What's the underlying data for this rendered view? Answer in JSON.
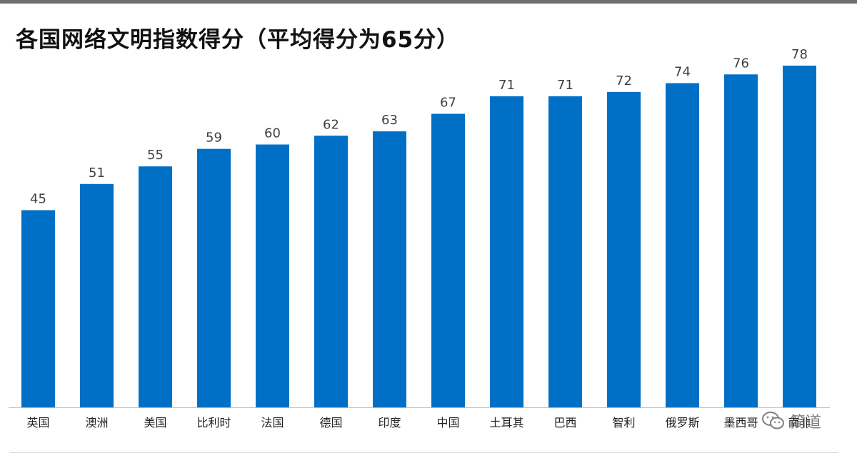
{
  "chart_data": {
    "type": "bar",
    "title": "各国网络文明指数得分（平均得分为65分）",
    "categories": [
      "英国",
      "澳洲",
      "美国",
      "比利时",
      "法国",
      "德国",
      "印度",
      "中国",
      "土耳其",
      "巴西",
      "智利",
      "俄罗斯",
      "墨西哥",
      "南非"
    ],
    "values": [
      45,
      51,
      55,
      59,
      60,
      62,
      63,
      67,
      71,
      71,
      72,
      74,
      76,
      78
    ],
    "xlabel": "",
    "ylabel": "",
    "ylim": [
      0,
      78
    ],
    "grid": false,
    "legend": "none",
    "data_labels": true,
    "bar_color": "#0070C6"
  },
  "watermark": {
    "text": "简道",
    "icon": "wechat-icon"
  }
}
